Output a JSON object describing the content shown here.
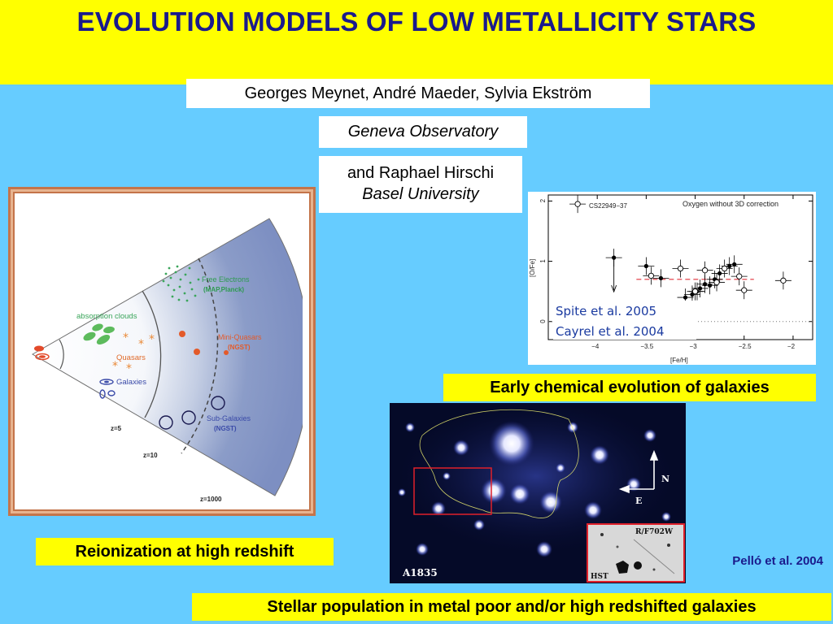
{
  "header": {
    "title": "EVOLUTION MODELS OF LOW METALLICITY STARS"
  },
  "authors": "Georges Meynet, André Maeder, Sylvia Ekström",
  "institution": "Geneva Observatory",
  "coauthor": {
    "name": "and Raphael Hirschi",
    "affiliation": "Basel University"
  },
  "left_figure": {
    "caption": "Reionization at high redshift",
    "regions": {
      "free_electrons": "Free Electrons",
      "free_electrons_probe": "(MAP,Planck)",
      "absorption_clouds": "absorption clouds",
      "quasars": "Quasars",
      "galaxies": "Galaxies",
      "mini_quasars": "Mini-Quasars",
      "mini_quasars_probe": "(NGST)",
      "sub_galaxies": "Sub-Galaxies",
      "sub_galaxies_probe": "(NGST)"
    },
    "redshifts": [
      "z=5",
      "z=10",
      "z=1000"
    ]
  },
  "right_figure": {
    "caption": "Early chemical evolution of galaxies",
    "refs": [
      "Spite et al. 2005",
      "Cayrel et al. 2004"
    ]
  },
  "chart_data": {
    "type": "scatter",
    "title": "Oxygen without 3D correction",
    "xlabel": "[Fe/H]",
    "ylabel": "[O/Fe]",
    "xlim": [
      -4.5,
      -1.8
    ],
    "ylim": [
      -0.3,
      2.1
    ],
    "xticks": [
      -4,
      -3.5,
      -3,
      -2.5,
      -2
    ],
    "xtick_labels": [
      "−4",
      "−3.5",
      "−3",
      "−2.5",
      "−2"
    ],
    "yticks": [
      0,
      1,
      2
    ],
    "ytick_labels": [
      "0",
      "1",
      "2"
    ],
    "annotation": "CS22949−37",
    "series": [
      {
        "name": "Spite et al. 2005",
        "marker": "filled",
        "x": [
          -3.83,
          -3.5,
          -3.35,
          -3.1,
          -3.03,
          -2.98,
          -2.95,
          -2.9,
          -2.85,
          -2.8,
          -2.75,
          -2.65,
          -2.6
        ],
        "y": [
          1.06,
          0.92,
          0.72,
          0.4,
          0.45,
          0.5,
          0.55,
          0.62,
          0.6,
          0.7,
          0.8,
          0.92,
          0.95
        ]
      },
      {
        "name": "Cayrel et al. 2004",
        "marker": "open",
        "x": [
          -4.2,
          -3.45,
          -3.15,
          -3.0,
          -2.9,
          -2.78,
          -2.7,
          -2.55,
          -2.5,
          -2.1
        ],
        "y": [
          1.95,
          0.76,
          0.88,
          0.5,
          0.85,
          0.65,
          0.88,
          0.75,
          0.52,
          0.68
        ]
      }
    ],
    "reference_line": {
      "y": 0.7,
      "x_from": -3.6,
      "x_to": -2.4
    }
  },
  "photo": {
    "label": "A1835",
    "inset_label": "R/F702W",
    "inset_caption": "HST",
    "compass": [
      "N",
      "E"
    ],
    "credit": "Pelló et al. 2004"
  },
  "footer": {
    "caption": "Stellar population in metal poor and/or high redshifted galaxies"
  },
  "colors": {
    "banner": "#ffff00",
    "background": "#66ccff",
    "title": "#1a1a8c",
    "credit": "#1a1a8c"
  }
}
